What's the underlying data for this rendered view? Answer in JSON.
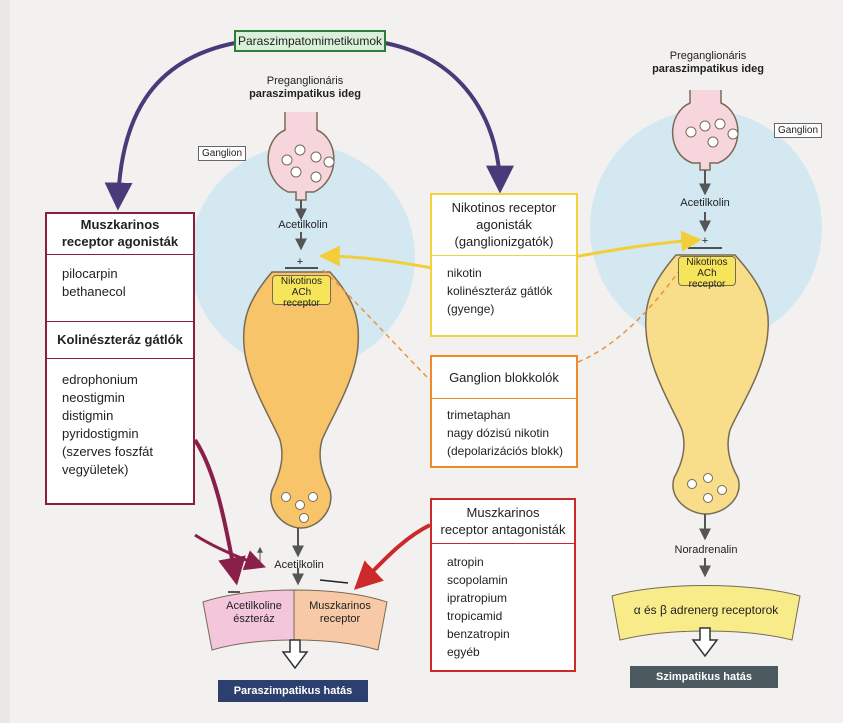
{
  "title": "Paraszimpatomimetikumok",
  "left_neuron": {
    "label_line1": "Preganglionáris",
    "label_line2": "paraszimpatikus ideg",
    "ganglion": "Ganglion",
    "transmitter1": "Acetilkolin",
    "receptor_line1": "Nikotinos ACh",
    "receptor_line2": "receptor",
    "transmitter2": "Acetilkolin",
    "enzyme_line1": "Acetilkoline",
    "enzyme_line2": "észteráz",
    "muscarinic_line1": "Muszkarinos",
    "muscarinic_line2": "receptor",
    "effect": "Paraszimpatikus hatás"
  },
  "right_neuron": {
    "label_line1": "Preganglionáris",
    "label_line2": "paraszimpatikus ideg",
    "ganglion": "Ganglion",
    "transmitter1": "Acetilkolin",
    "receptor_line1": "Nikotinos ACh",
    "receptor_line2": "receptor",
    "transmitter2": "Noradrenalin",
    "adrenergic": "α és β adrenerg receptorok",
    "effect": "Szimpatikus hatás"
  },
  "boxes": {
    "musc_agonists": {
      "heading_line1": "Muszkarinos",
      "heading_line2": "receptor agonisták",
      "items": [
        "pilocarpin",
        "bethanecol"
      ]
    },
    "cholinesterase": {
      "heading": "Kolinészteráz gátlók",
      "items": [
        "edrophonium",
        "neostigmin",
        "distigmin",
        "pyridostigmin",
        "(szerves foszfát",
        "vegyületek)"
      ]
    },
    "nicotinic_agonists": {
      "heading_line1": "Nikotinos receptor",
      "heading_line2": "agonisták",
      "heading_line3": "(ganglionizgatók)",
      "items": [
        "nikotin",
        "kolinészteráz gátlók",
        "(gyenge)"
      ]
    },
    "ganglion_blockers": {
      "heading": "Ganglion blokkolók",
      "items": [
        "trimetaphan",
        "nagy dózisú nikotin",
        "(depolarizációs blokk)"
      ]
    },
    "musc_antagonists": {
      "heading_line1": "Muszkarinos",
      "heading_line2": "receptor antagonisták",
      "items": [
        "atropin",
        "scopolamin",
        "ipratropium",
        "tropicamid",
        "benzatropin",
        "egyéb"
      ]
    }
  },
  "colors": {
    "neuron_fill": "#f8c46a",
    "neuron_stroke": "#7a6a55",
    "presyn_fill": "#f6d6dc",
    "halo": "#cfe6f2",
    "musc_box": "#8a1f3d",
    "chol_box": "#7a1f4a",
    "nicotinic_box": "#f2d43a",
    "blocker_box": "#ef8a2a",
    "antagonist_box": "#cc2a2a",
    "effect_band": "#2c3f6e",
    "effect_band_right": "#4a5a5e",
    "adrenergic_fill": "#f7eb8a"
  }
}
